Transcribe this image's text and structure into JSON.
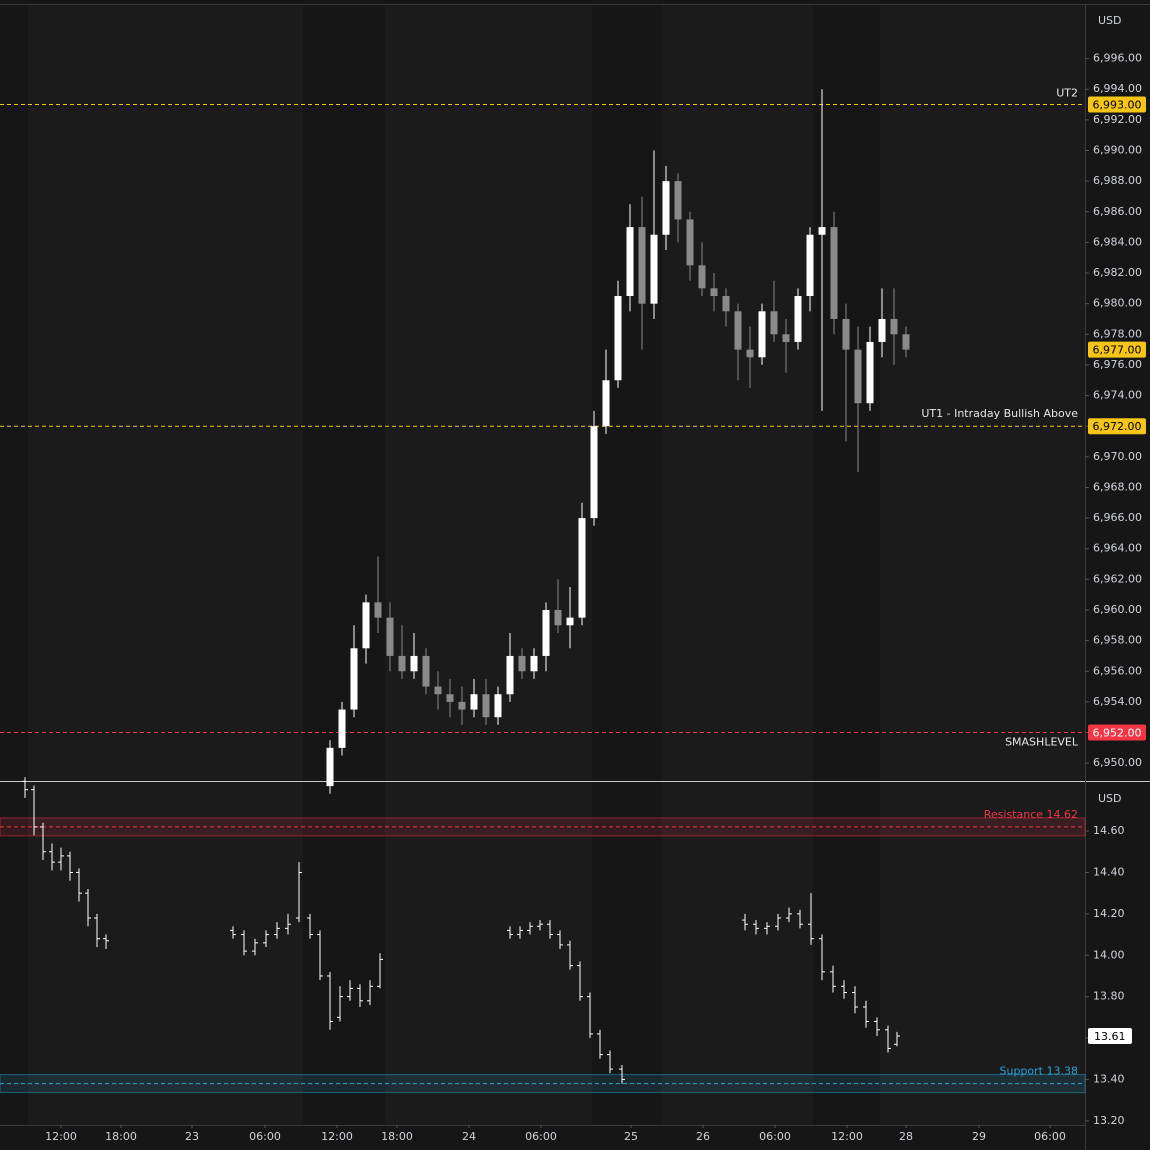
{
  "chart_data": [
    {
      "type": "candlestick",
      "currency": "USD",
      "up_color": "#ffffff",
      "down_color": "#8a8a8a",
      "xlim": [
        0,
        108.5
      ],
      "ylim": [
        6948.9,
        6999.5
      ],
      "yticks": [
        {
          "value": 6950,
          "label": "6,950.00"
        },
        {
          "value": 6952,
          "label": "6,952.00"
        },
        {
          "value": 6954,
          "label": "6,954.00"
        },
        {
          "value": 6956,
          "label": "6,956.00"
        },
        {
          "value": 6958,
          "label": "6,958.00"
        },
        {
          "value": 6960,
          "label": "6,960.00"
        },
        {
          "value": 6962,
          "label": "6,962.00"
        },
        {
          "value": 6964,
          "label": "6,964.00"
        },
        {
          "value": 6966,
          "label": "6,966.00"
        },
        {
          "value": 6968,
          "label": "6,968.00"
        },
        {
          "value": 6970,
          "label": "6,970.00"
        },
        {
          "value": 6972,
          "label": "6,972.00"
        },
        {
          "value": 6974,
          "label": "6,974.00"
        },
        {
          "value": 6976,
          "label": "6,976.00"
        },
        {
          "value": 6978,
          "label": "6,978.00"
        },
        {
          "value": 6980,
          "label": "6,980.00"
        },
        {
          "value": 6982,
          "label": "6,982.00"
        },
        {
          "value": 6984,
          "label": "6,984.00"
        },
        {
          "value": 6986,
          "label": "6,986.00"
        },
        {
          "value": 6988,
          "label": "6,988.00"
        },
        {
          "value": 6990,
          "label": "6,990.00"
        },
        {
          "value": 6992,
          "label": "6,992.00"
        },
        {
          "value": 6994,
          "label": "6,994.00"
        },
        {
          "value": 6996,
          "label": "6,996.00"
        }
      ],
      "x": [
        33.0,
        34.2,
        35.4,
        36.6,
        37.8,
        39.0,
        40.2,
        41.4,
        42.6,
        43.8,
        45.0,
        46.2,
        47.4,
        48.6,
        49.8,
        51.0,
        52.2,
        53.4,
        54.6,
        55.8,
        57.0,
        58.2,
        59.4,
        60.6,
        61.8,
        63.0,
        64.2,
        65.4,
        66.6,
        67.8,
        69.0,
        70.2,
        71.4,
        72.6,
        73.8,
        75.0,
        76.2,
        77.4,
        78.6,
        79.8,
        81.0,
        82.2,
        83.4,
        84.6,
        85.8,
        87.0,
        88.2,
        89.4,
        90.6
      ],
      "open": [
        6948.5,
        6951,
        6953.5,
        6957.5,
        6960.5,
        6959.5,
        6957,
        6956,
        6957,
        6955,
        6954.5,
        6954,
        6953.5,
        6954.5,
        6953,
        6954.5,
        6957,
        6956,
        6957,
        6960,
        6959,
        6959.5,
        6966,
        6972,
        6975,
        6980.5,
        6985,
        6980,
        6984.5,
        6988,
        6985.5,
        6982.5,
        6981,
        6980.5,
        6979.5,
        6977,
        6976.5,
        6979.5,
        6978,
        6977.5,
        6980.5,
        6984.5,
        6985,
        6979,
        6977,
        6973.5,
        6977.5,
        6979,
        6978
      ],
      "high": [
        6951.5,
        6954,
        6959,
        6961,
        6963.5,
        6960.5,
        6959,
        6958.5,
        6957.5,
        6956,
        6955.5,
        6955,
        6955.5,
        6955.5,
        6955,
        6958.5,
        6957.5,
        6957.5,
        6960.5,
        6962,
        6961.5,
        6967,
        6973,
        6977,
        6981.5,
        6986.5,
        6987,
        6990,
        6989,
        6988.5,
        6986,
        6984,
        6982,
        6981,
        6980,
        6978.5,
        6980,
        6981.5,
        6979,
        6981,
        6985,
        6994,
        6986,
        6980,
        6978.5,
        6978.5,
        6981,
        6981,
        6978.5
      ],
      "low": [
        6948,
        6950.5,
        6953,
        6956.5,
        6958.5,
        6956,
        6955.5,
        6955.5,
        6954.5,
        6953.5,
        6953,
        6952.5,
        6953,
        6952.5,
        6952.5,
        6954,
        6955.5,
        6955.5,
        6956,
        6958.5,
        6957.5,
        6959,
        6965.5,
        6971.5,
        6974.5,
        6979.5,
        6977,
        6979,
        6983.5,
        6984,
        6981.5,
        6980.5,
        6979.5,
        6978.5,
        6975,
        6974.5,
        6976,
        6977.5,
        6975.5,
        6977,
        6979.5,
        6973,
        6978,
        6971,
        6969,
        6973,
        6976.5,
        6976,
        6976.5
      ],
      "close": [
        6951,
        6953.5,
        6957.5,
        6960.5,
        6959.5,
        6957,
        6956,
        6957,
        6955,
        6954.5,
        6954,
        6953.5,
        6954.5,
        6953,
        6954.5,
        6957,
        6956,
        6957,
        6960,
        6959,
        6959.5,
        6966,
        6972,
        6975,
        6980.5,
        6985,
        6980,
        6984.5,
        6988,
        6985.5,
        6982.5,
        6981,
        6980.5,
        6979.5,
        6977,
        6976.5,
        6979.5,
        6978,
        6977.5,
        6980.5,
        6984.5,
        6985,
        6979,
        6977,
        6973.5,
        6977.5,
        6979,
        6978,
        6977
      ],
      "levels": [
        {
          "name": "UT2",
          "value": 6993,
          "label": "6,993.00",
          "color": "#f5c518"
        },
        {
          "name": "UT1 - Intraday Bullish Above",
          "value": 6972,
          "label": "6,972.00",
          "color": "#f5c518"
        },
        {
          "name": "SMASHLEVEL",
          "value": 6952,
          "label": "6,952.00",
          "color": "#f23645"
        }
      ],
      "last_price": {
        "value": 6977,
        "label": "6,977.00",
        "color": "#f5c518"
      }
    },
    {
      "type": "ohlc",
      "currency": "USD",
      "color": "#ffffff",
      "xlim": [
        0,
        108.5
      ],
      "ylim": [
        13.18,
        14.837
      ],
      "yticks": [
        {
          "value": 13.2,
          "label": "13.20"
        },
        {
          "value": 13.4,
          "label": "13.40"
        },
        {
          "value": 13.6,
          "label": "13.60"
        },
        {
          "value": 13.8,
          "label": "13.80"
        },
        {
          "value": 14.0,
          "label": "14.00"
        },
        {
          "value": 14.2,
          "label": "14.20"
        },
        {
          "value": 14.4,
          "label": "14.40"
        },
        {
          "value": 14.6,
          "label": "14.60"
        }
      ],
      "xticks": [
        {
          "value": 6.1,
          "label": "12:00"
        },
        {
          "value": 12.1,
          "label": "18:00"
        },
        {
          "value": 19.2,
          "label": "23"
        },
        {
          "value": 26.5,
          "label": "06:00"
        },
        {
          "value": 33.7,
          "label": "12:00"
        },
        {
          "value": 39.7,
          "label": "18:00"
        },
        {
          "value": 46.9,
          "label": "24"
        },
        {
          "value": 54.1,
          "label": "06:00"
        },
        {
          "value": 63.1,
          "label": "25"
        },
        {
          "value": 70.3,
          "label": "26"
        },
        {
          "value": 77.5,
          "label": "06:00"
        },
        {
          "value": 84.7,
          "label": "12:00"
        },
        {
          "value": 90.6,
          "label": "28"
        },
        {
          "value": 97.9,
          "label": "29"
        },
        {
          "value": 105.0,
          "label": "06:00"
        }
      ],
      "x": [
        2.5,
        3.4,
        4.3,
        5.2,
        6.1,
        7.0,
        7.9,
        8.8,
        9.7,
        10.6,
        23.3,
        24.4,
        25.5,
        26.6,
        27.7,
        28.8,
        29.9,
        31.0,
        32.0,
        33.0,
        34.0,
        35.0,
        36.0,
        37.0,
        38.0,
        51.0,
        52.0,
        53.0,
        54.0,
        55.0,
        56.0,
        57.0,
        58.0,
        59.0,
        60.0,
        61.0,
        62.2,
        74.5,
        75.6,
        76.7,
        77.8,
        78.9,
        80.0,
        81.1,
        82.2,
        83.3,
        84.4,
        85.5,
        86.6,
        87.7,
        88.8,
        89.7
      ],
      "open": [
        14.84,
        14.8,
        14.62,
        14.5,
        14.45,
        14.48,
        14.4,
        14.3,
        14.18,
        14.08,
        14.12,
        14.1,
        14.02,
        14.06,
        14.1,
        14.13,
        14.18,
        14.18,
        14.1,
        13.9,
        13.7,
        13.8,
        13.84,
        13.78,
        13.85,
        14.12,
        14.1,
        14.12,
        14.14,
        14.15,
        14.1,
        14.05,
        13.95,
        13.8,
        13.62,
        13.52,
        13.45,
        14.17,
        14.15,
        14.13,
        14.14,
        14.18,
        14.2,
        14.15,
        14.08,
        13.92,
        13.85,
        13.82,
        13.75,
        13.68,
        13.64,
        13.57
      ],
      "high": [
        14.86,
        14.82,
        14.64,
        14.54,
        14.52,
        14.5,
        14.42,
        14.32,
        14.2,
        14.1,
        14.14,
        14.12,
        14.08,
        14.12,
        14.16,
        14.2,
        14.45,
        14.2,
        14.12,
        13.92,
        13.85,
        13.88,
        13.86,
        13.88,
        14.01,
        14.14,
        14.14,
        14.16,
        14.17,
        14.17,
        14.12,
        14.07,
        13.97,
        13.82,
        13.64,
        13.54,
        13.47,
        14.2,
        14.17,
        14.16,
        14.2,
        14.23,
        14.22,
        14.3,
        14.1,
        13.95,
        13.88,
        13.85,
        13.78,
        13.7,
        13.66,
        13.63
      ],
      "low": [
        14.76,
        14.58,
        14.46,
        14.41,
        14.41,
        14.36,
        14.26,
        14.14,
        14.04,
        14.03,
        14.08,
        14.0,
        14.0,
        14.04,
        14.08,
        14.1,
        14.16,
        14.08,
        13.88,
        13.64,
        13.68,
        13.78,
        13.75,
        13.76,
        13.84,
        14.08,
        14.08,
        14.1,
        14.12,
        14.08,
        14.03,
        13.93,
        13.78,
        13.6,
        13.5,
        13.43,
        13.38,
        14.12,
        14.1,
        14.1,
        14.12,
        14.16,
        14.13,
        14.05,
        13.88,
        13.82,
        13.79,
        13.72,
        13.65,
        13.61,
        13.53,
        13.56
      ],
      "close": [
        14.8,
        14.62,
        14.5,
        14.45,
        14.48,
        14.4,
        14.3,
        14.18,
        14.08,
        14.07,
        14.1,
        14.02,
        14.06,
        14.1,
        14.13,
        14.15,
        14.4,
        14.1,
        13.9,
        13.68,
        13.8,
        13.84,
        13.78,
        13.85,
        13.98,
        14.1,
        14.12,
        14.14,
        14.15,
        14.1,
        14.05,
        13.95,
        13.8,
        13.62,
        13.52,
        13.45,
        13.4,
        14.15,
        14.13,
        14.14,
        14.18,
        14.2,
        14.15,
        14.08,
        13.92,
        13.85,
        13.82,
        13.75,
        13.68,
        13.64,
        13.55,
        13.61
      ],
      "levels": [
        {
          "name": "Resistance 14.62",
          "value": 14.62,
          "color": "#f23645"
        },
        {
          "name": "Support 13.38",
          "value": 13.38,
          "color": "#2aa3d8"
        }
      ],
      "last_price": {
        "value": 13.61,
        "label": "13.61",
        "color": "#ffffff"
      }
    }
  ]
}
